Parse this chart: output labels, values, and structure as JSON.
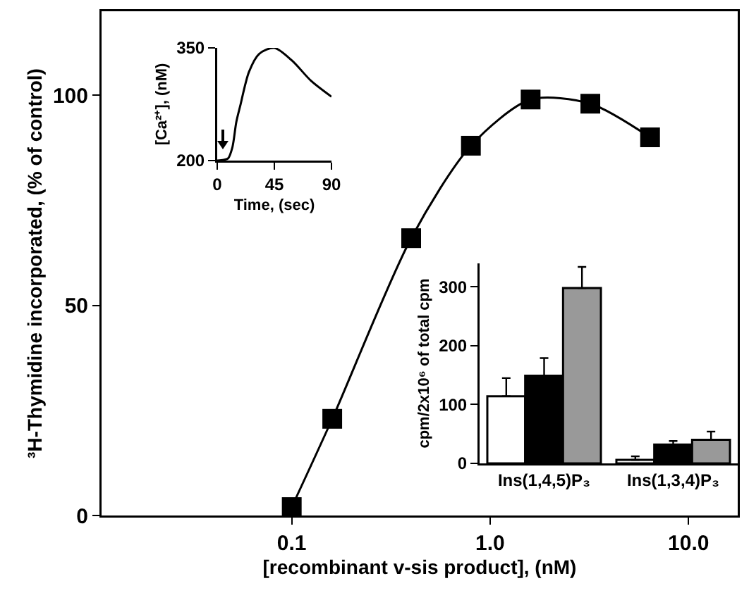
{
  "chart_data": [
    {
      "type": "line",
      "xlabel": "[recombinant v-sis product], (nM)",
      "ylabel": "³H-Thymidine incorporated, (% of control)",
      "log": "x",
      "marker": "square",
      "line_style": "solid",
      "grid": false,
      "xlim": [
        0.011,
        17.7
      ],
      "xticks": [
        {
          "value": 0.1,
          "label": "0.1"
        },
        {
          "value": 1,
          "label": "1.0"
        },
        {
          "value": 10,
          "label": "10.0"
        }
      ],
      "ylim": [
        0,
        120
      ],
      "yticks": [
        0,
        50,
        100
      ],
      "x": [
        0.1,
        0.16,
        0.4,
        0.8,
        1.6,
        3.2,
        6.4
      ],
      "series": [
        {
          "color": "#000000",
          "values": [
            2,
            23,
            66,
            88,
            99,
            98,
            90
          ]
        }
      ]
    },
    {
      "type": "line",
      "xlabel": "Time, (sec)",
      "ylabel": "[Ca²⁺], (nM)",
      "marker": "none",
      "line_style": "solid",
      "grid": false,
      "xlim": [
        0,
        90
      ],
      "xticks": [
        0,
        45,
        90
      ],
      "ylim": [
        200,
        350
      ],
      "yticks": [
        200,
        350
      ],
      "x": [
        0,
        5,
        8.6,
        12,
        15,
        18,
        25,
        33,
        45,
        59,
        74,
        90
      ],
      "series": [
        {
          "color": "#000000",
          "values": [
            200,
            201,
            203,
            218,
            251,
            272,
            318,
            342,
            350,
            333,
            306,
            285
          ]
        }
      ]
    },
    {
      "type": "bar",
      "ylabel": "cpm/2x10⁶ of total cpm",
      "grid": false,
      "categories": [
        "Ins(1,4,5)P₃",
        "Ins(1,3,4)P₃"
      ],
      "ylim": [
        0,
        340
      ],
      "yticks": [
        0,
        100,
        200,
        300
      ],
      "series": [
        {
          "color": "#ffffff",
          "values": [
            114,
            6
          ],
          "errors": [
            [
              114,
              145
            ],
            [
              6,
              12
            ]
          ]
        },
        {
          "color": "#000000",
          "values": [
            149,
            32
          ],
          "errors": [
            [
              149,
              179
            ],
            [
              32,
              38
            ]
          ]
        },
        {
          "color": "#999999",
          "values": [
            298,
            40
          ],
          "errors": [
            [
              298,
              334
            ],
            [
              40,
              54
            ]
          ]
        }
      ]
    }
  ]
}
